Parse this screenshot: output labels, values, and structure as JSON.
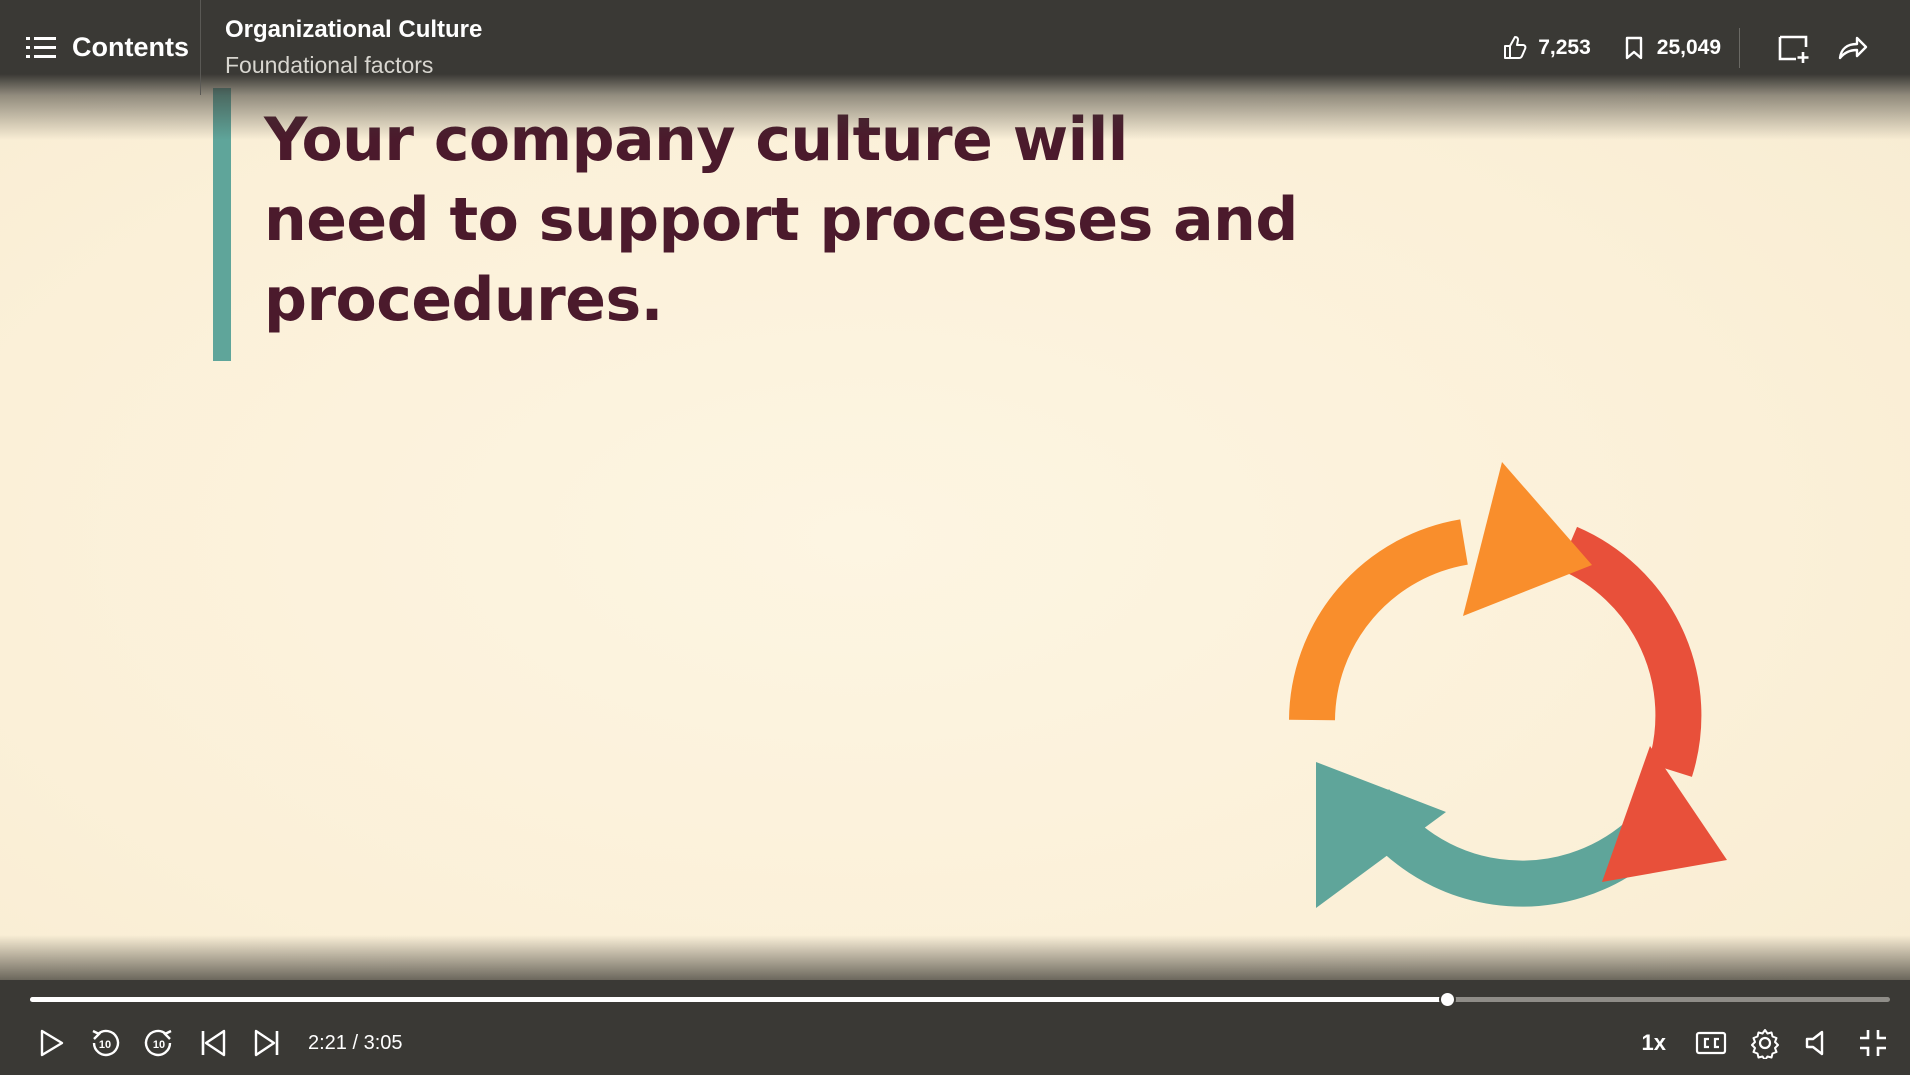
{
  "header": {
    "contents_label": "Contents",
    "course_title": "Organizational Culture",
    "video_title": "Foundational factors",
    "likes": "7,253",
    "saves": "25,049"
  },
  "slide": {
    "quote": "Your company culture will need to support processes and procedures.",
    "colors": {
      "accent_bar": "#5fa59a",
      "text": "#4b1a2c",
      "arrow_orange": "#f98e2c",
      "arrow_red": "#e8503a",
      "arrow_teal": "#5fa59a"
    }
  },
  "player": {
    "current_time": "2:21",
    "separator": "/",
    "duration": "3:05",
    "progress_fraction": 0.762,
    "speed": "1x",
    "rewind_label": "10",
    "forward_label": "10"
  }
}
